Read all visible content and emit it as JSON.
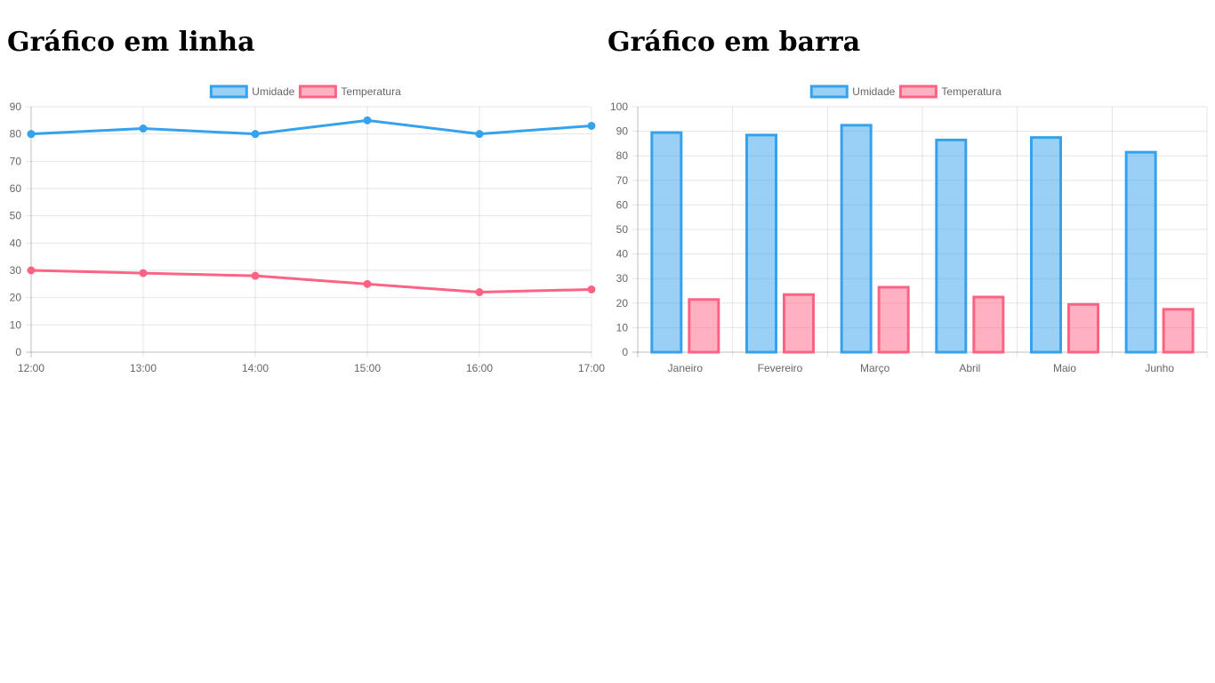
{
  "charts": [
    {
      "heading": "Gráfico em linha"
    },
    {
      "heading": "Gráfico em barra"
    }
  ],
  "chart_data": [
    {
      "type": "line",
      "title": "Gráfico em linha",
      "categories": [
        "12:00",
        "13:00",
        "14:00",
        "15:00",
        "16:00",
        "17:00"
      ],
      "series": [
        {
          "name": "Umidade",
          "values": [
            80,
            82,
            80,
            85,
            80,
            83
          ],
          "color": "#36A2EB",
          "fill": "rgba(54,162,235,0.5)"
        },
        {
          "name": "Temperatura",
          "values": [
            30,
            29,
            28,
            25,
            22,
            23
          ],
          "color": "#FF6384",
          "fill": "rgba(255,99,132,0.5)"
        }
      ],
      "ylim": [
        0,
        90
      ],
      "yticks": [
        0,
        10,
        20,
        30,
        40,
        50,
        60,
        70,
        80,
        90
      ],
      "grid": true,
      "legend": "top-center"
    },
    {
      "type": "bar",
      "title": "Gráfico em barra",
      "categories": [
        "Janeiro",
        "Fevereiro",
        "Março",
        "Abril",
        "Maio",
        "Junho"
      ],
      "series": [
        {
          "name": "Umidade",
          "values": [
            90,
            89,
            93,
            87,
            88,
            82
          ],
          "color": "#36A2EB",
          "fill": "rgba(54,162,235,0.5)"
        },
        {
          "name": "Temperatura",
          "values": [
            22,
            24,
            27,
            23,
            20,
            18
          ],
          "color": "#FF6384",
          "fill": "rgba(255,99,132,0.5)"
        }
      ],
      "ylim": [
        0,
        100
      ],
      "yticks": [
        0,
        10,
        20,
        30,
        40,
        50,
        60,
        70,
        80,
        90,
        100
      ],
      "grid": true,
      "legend": "top-center"
    }
  ]
}
